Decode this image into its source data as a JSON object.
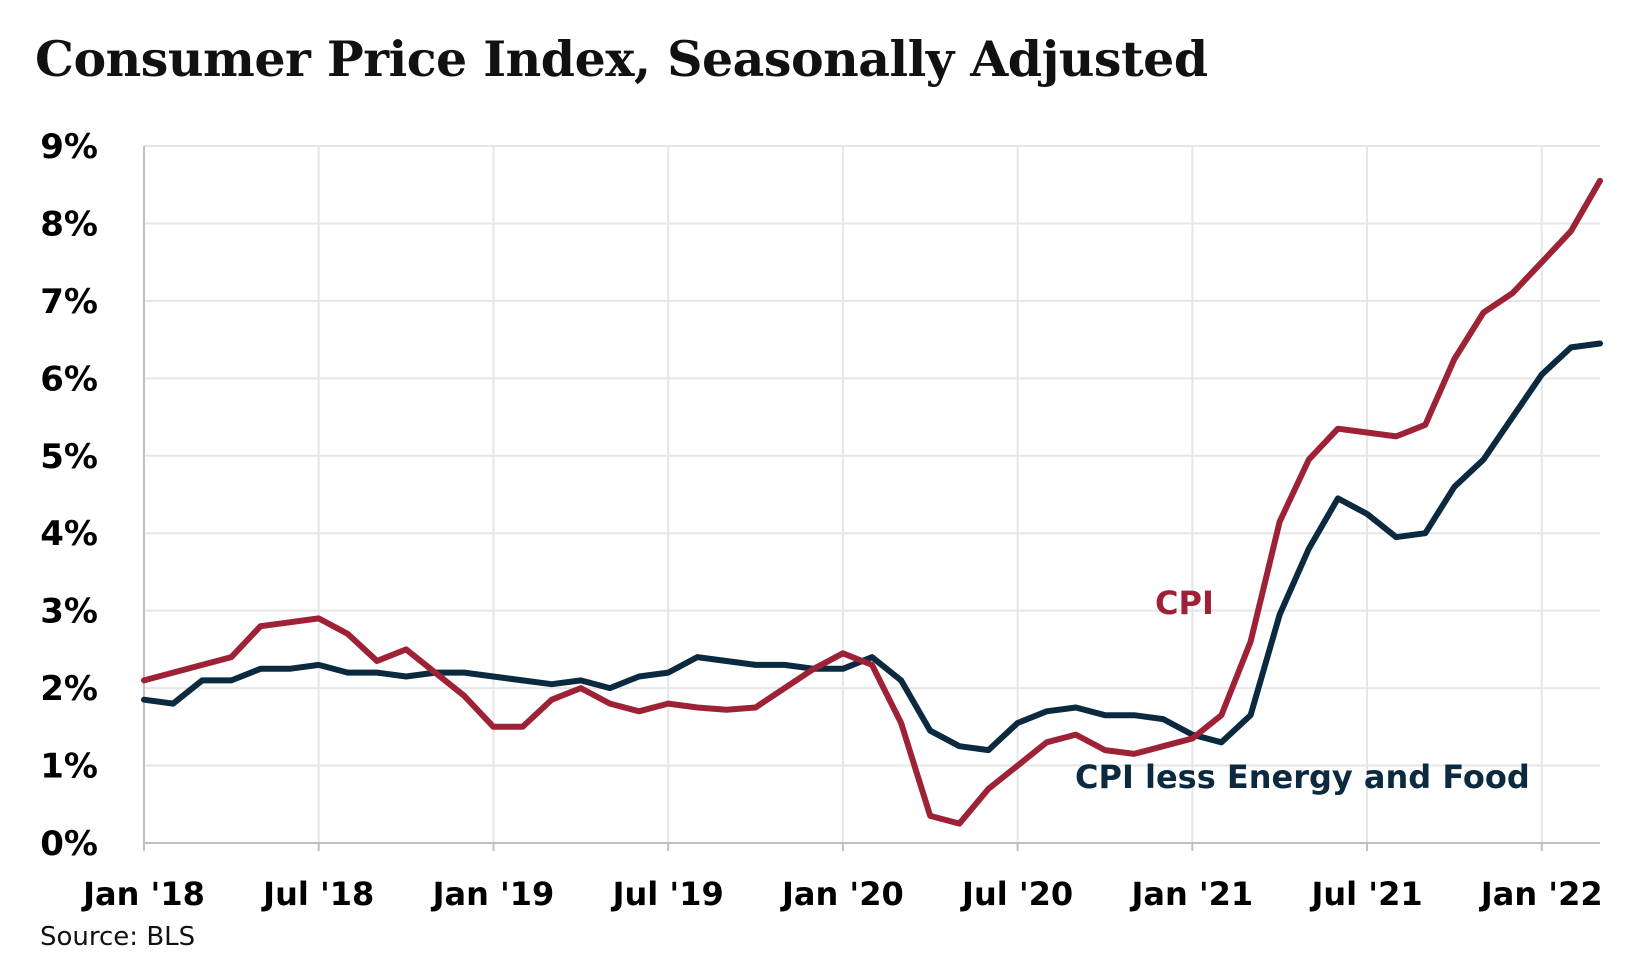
{
  "chart_data": {
    "type": "line",
    "title": "Consumer Price Index, Seasonally Adjusted",
    "source": "Source: BLS",
    "xlabel": "",
    "ylabel": "",
    "x_tick_labels": [
      "Jan '18",
      "Jul '18",
      "Jan '19",
      "Jul '19",
      "Jan '20",
      "Jul '20",
      "Jan '21",
      "Jul '21",
      "Jan '22"
    ],
    "y_tick_labels": [
      "0%",
      "1%",
      "2%",
      "3%",
      "4%",
      "5%",
      "6%",
      "7%",
      "8%",
      "9%"
    ],
    "ylim": [
      0,
      9
    ],
    "x_range": [
      "2018-01",
      "2022-03"
    ],
    "grid": true,
    "legend": "inline labels",
    "x": [
      "2018-01",
      "2018-02",
      "2018-03",
      "2018-04",
      "2018-05",
      "2018-06",
      "2018-07",
      "2018-08",
      "2018-09",
      "2018-10",
      "2018-11",
      "2018-12",
      "2019-01",
      "2019-02",
      "2019-03",
      "2019-04",
      "2019-05",
      "2019-06",
      "2019-07",
      "2019-08",
      "2019-09",
      "2019-10",
      "2019-11",
      "2019-12",
      "2020-01",
      "2020-02",
      "2020-03",
      "2020-04",
      "2020-05",
      "2020-06",
      "2020-07",
      "2020-08",
      "2020-09",
      "2020-10",
      "2020-11",
      "2020-12",
      "2021-01",
      "2021-02",
      "2021-03",
      "2021-04",
      "2021-05",
      "2021-06",
      "2021-07",
      "2021-08",
      "2021-09",
      "2021-10",
      "2021-11",
      "2021-12",
      "2022-01",
      "2022-02",
      "2022-03"
    ],
    "series": [
      {
        "name": "CPI",
        "color": "#9e2236",
        "values": [
          2.1,
          2.2,
          2.3,
          2.4,
          2.8,
          2.85,
          2.9,
          2.7,
          2.35,
          2.5,
          2.2,
          1.9,
          1.5,
          1.5,
          1.85,
          2.0,
          1.8,
          1.7,
          1.8,
          1.75,
          1.72,
          1.75,
          2.0,
          2.25,
          2.45,
          2.3,
          1.55,
          0.35,
          0.25,
          0.7,
          1.0,
          1.3,
          1.4,
          1.2,
          1.15,
          1.25,
          1.35,
          1.65,
          2.6,
          4.15,
          4.95,
          5.35,
          5.3,
          5.25,
          5.4,
          6.25,
          6.85,
          7.1,
          7.5,
          7.9,
          8.55
        ]
      },
      {
        "name": "CPI less Energy and Food",
        "color": "#0b2a3f",
        "values": [
          1.85,
          1.8,
          2.1,
          2.1,
          2.25,
          2.25,
          2.3,
          2.2,
          2.2,
          2.15,
          2.2,
          2.2,
          2.15,
          2.1,
          2.05,
          2.1,
          2.0,
          2.15,
          2.2,
          2.4,
          2.35,
          2.3,
          2.3,
          2.25,
          2.25,
          2.4,
          2.1,
          1.45,
          1.25,
          1.2,
          1.55,
          1.7,
          1.75,
          1.65,
          1.65,
          1.6,
          1.4,
          1.3,
          1.65,
          2.95,
          3.8,
          4.45,
          4.25,
          3.95,
          4.0,
          4.6,
          4.95,
          5.5,
          6.05,
          6.4,
          6.45
        ]
      }
    ]
  }
}
